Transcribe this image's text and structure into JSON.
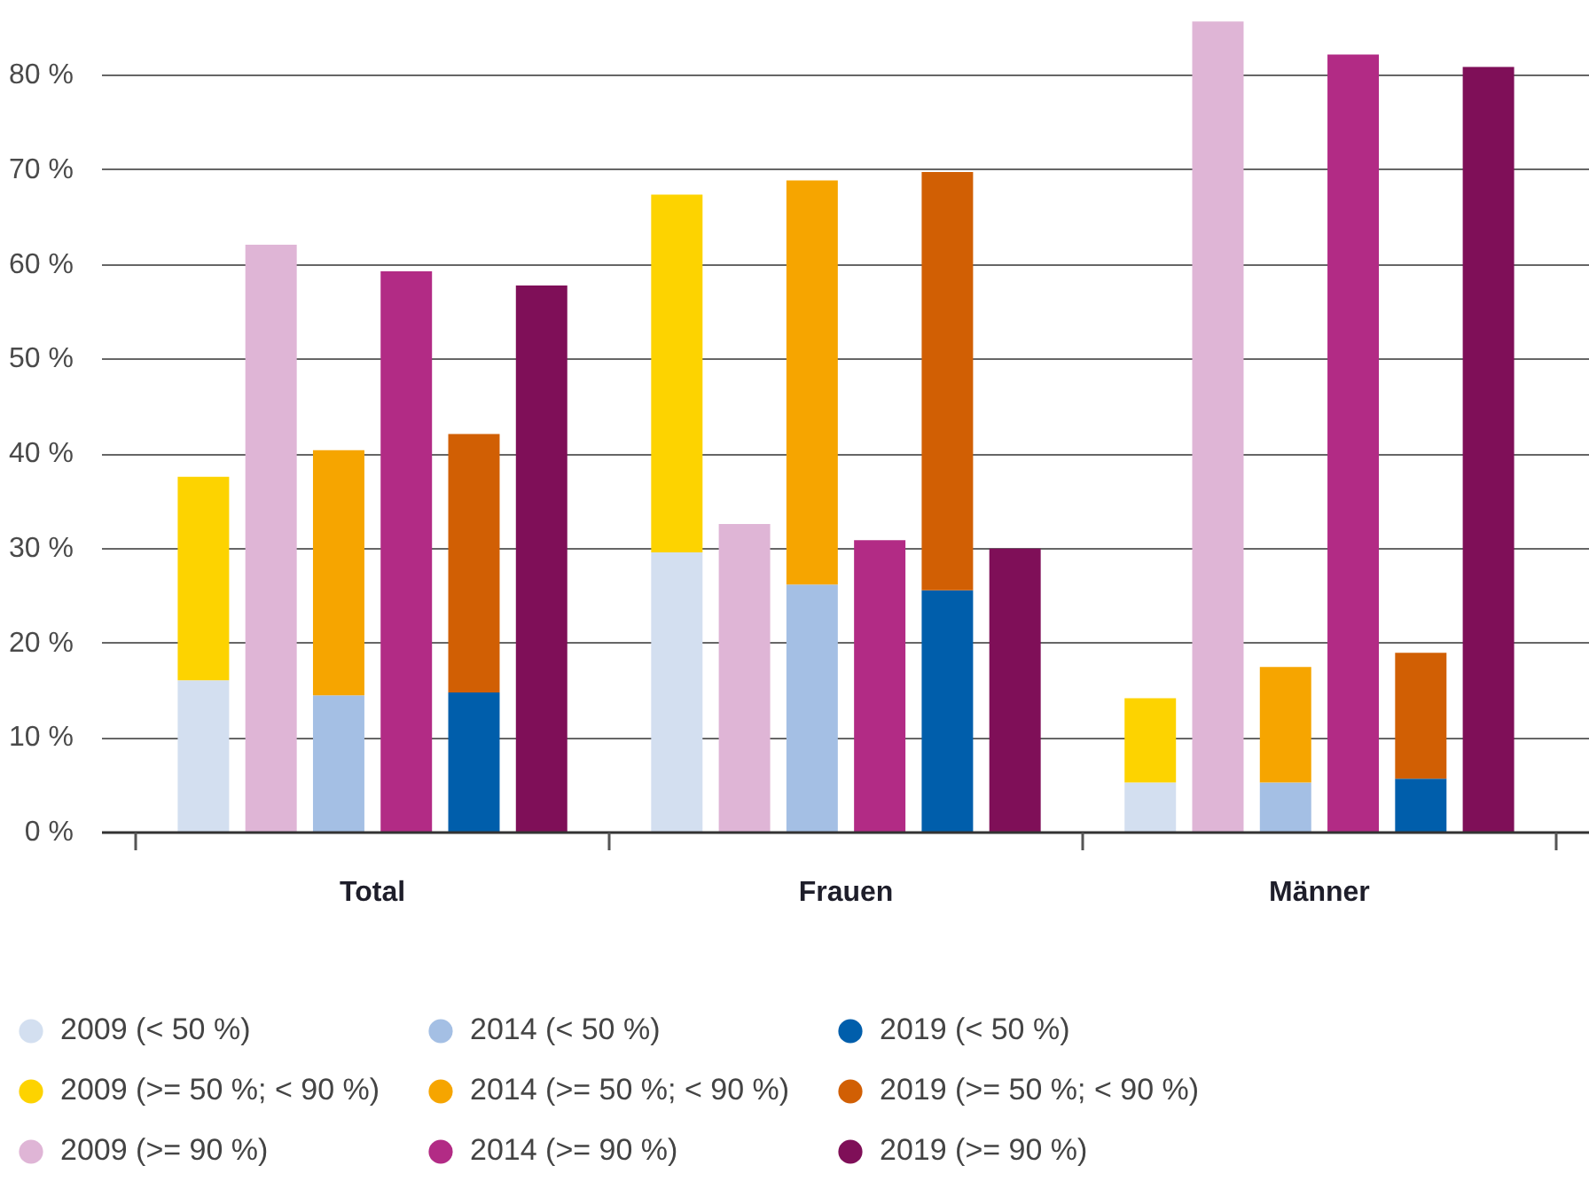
{
  "chart_data": {
    "type": "bar",
    "stacked": true,
    "categories": [
      null,
      null,
      null,
      null,
      null,
      null,
      null,
      null,
      null,
      null,
      null,
      null,
      null,
      null,
      null,
      null,
      null,
      null,
      null,
      null,
      null,
      null
    ],
    "series": [
      {
        "name": "2009 (< 50 %)",
        "color": "#d3dff0",
        "values": [
          null,
          16.1,
          null,
          null,
          null,
          null,
          null,
          null,
          29.6,
          null,
          null,
          null,
          null,
          null,
          null,
          5.3,
          null,
          null,
          null,
          null,
          null,
          null
        ]
      },
      {
        "name": "2009 (>= 50 %; < 90 %)",
        "color": "#fdd300",
        "values": [
          null,
          21.5,
          null,
          null,
          null,
          null,
          null,
          null,
          37.8,
          null,
          null,
          null,
          null,
          null,
          null,
          8.9,
          null,
          null,
          null,
          null,
          null,
          null
        ]
      },
      {
        "name": "2009 (>= 90 %)",
        "color": "#dfb5d6",
        "values": [
          null,
          null,
          62.1,
          null,
          null,
          null,
          null,
          null,
          null,
          32.6,
          null,
          null,
          null,
          null,
          null,
          null,
          85.7,
          null,
          null,
          null,
          null,
          null
        ]
      },
      {
        "name": "2014 (< 50 %)",
        "color": "#a4bfe4",
        "values": [
          null,
          null,
          null,
          14.5,
          null,
          null,
          null,
          null,
          null,
          null,
          26.2,
          null,
          null,
          null,
          null,
          null,
          null,
          5.3,
          null,
          null,
          null,
          null
        ]
      },
      {
        "name": "2014 (>= 50 %; < 90 %)",
        "color": "#f6a500",
        "values": [
          null,
          null,
          null,
          25.9,
          null,
          null,
          null,
          null,
          null,
          null,
          42.7,
          null,
          null,
          null,
          null,
          null,
          null,
          12.2,
          null,
          null,
          null,
          null
        ]
      },
      {
        "name": "2014 (>= 90 %)",
        "color": "#b22b85",
        "values": [
          null,
          null,
          null,
          null,
          59.3,
          null,
          null,
          null,
          null,
          null,
          null,
          30.9,
          null,
          null,
          null,
          null,
          null,
          null,
          82.2,
          null,
          null,
          null
        ]
      },
      {
        "name": "2019 (< 50 %)",
        "color": "#005eab",
        "values": [
          null,
          null,
          null,
          null,
          null,
          14.8,
          null,
          null,
          null,
          null,
          null,
          null,
          25.6,
          null,
          null,
          null,
          null,
          null,
          null,
          5.7,
          null,
          null
        ]
      },
      {
        "name": "2019 (>= 50 %; < 90 %)",
        "color": "#d15f04",
        "values": [
          null,
          null,
          null,
          null,
          null,
          27.3,
          null,
          null,
          null,
          null,
          null,
          null,
          44.2,
          null,
          null,
          null,
          null,
          null,
          null,
          13.3,
          null,
          null
        ]
      },
      {
        "name": "2019 (>= 90 %)",
        "color": "#7f0f58",
        "values": [
          null,
          null,
          null,
          null,
          null,
          null,
          57.8,
          null,
          null,
          null,
          null,
          null,
          null,
          30.0,
          null,
          null,
          null,
          null,
          null,
          null,
          80.9,
          null
        ]
      }
    ],
    "ylim": [
      0,
      86
    ],
    "yticks": [
      {
        "value": 0,
        "label": "0 %"
      },
      {
        "value": 10,
        "label": "10 %"
      },
      {
        "value": 20,
        "label": "20 %"
      },
      {
        "value": 30,
        "label": "30 %"
      },
      {
        "value": 40,
        "label": "40 %"
      },
      {
        "value": 50,
        "label": "50 %"
      },
      {
        "value": 60,
        "label": "60 %"
      },
      {
        "value": 70,
        "label": "70 %"
      },
      {
        "value": 80,
        "label": "80 %"
      }
    ],
    "grid": "y",
    "legend": "bottom",
    "annotations": [
      "Total",
      "Frauen",
      "Männer"
    ]
  }
}
